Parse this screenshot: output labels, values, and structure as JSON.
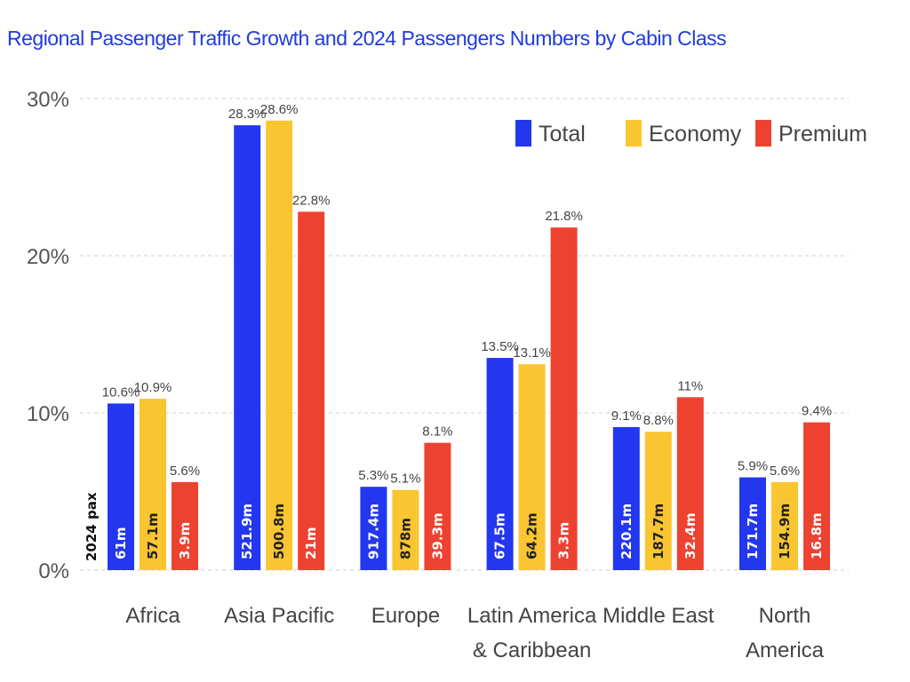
{
  "chart_data": {
    "type": "bar",
    "title": "Regional Passenger Traffic Growth and 2024 Passengers Numbers by Cabin Class",
    "categories": [
      [
        "Africa"
      ],
      [
        "Asia Pacific"
      ],
      [
        "Europe"
      ],
      [
        "Latin America",
        "& Caribbean"
      ],
      [
        "Middle East"
      ],
      [
        "North",
        "America"
      ]
    ],
    "ylim": [
      0,
      30
    ],
    "yticks": [
      0,
      10,
      20,
      30
    ],
    "ytick_labels": [
      "0%",
      "10%",
      "20%",
      "30%"
    ],
    "grid": true,
    "legend_position": "top-right",
    "bar_annotation_title": "2024 pax",
    "series": [
      {
        "name": "Total",
        "color": "#2337ee",
        "values": [
          10.6,
          28.3,
          5.3,
          13.5,
          9.1,
          5.9
        ],
        "value_labels": [
          "10.6%",
          "28.3%",
          "5.3%",
          "13.5%",
          "9.1%",
          "5.9%"
        ],
        "pax_labels": [
          "61m",
          "521.9m",
          "917.4m",
          "67.5m",
          "220.1m",
          "171.7m"
        ]
      },
      {
        "name": "Economy",
        "color": "#f9c531",
        "values": [
          10.9,
          28.6,
          5.1,
          13.1,
          8.8,
          5.6
        ],
        "value_labels": [
          "10.9%",
          "28.6%",
          "5.1%",
          "13.1%",
          "8.8%",
          "5.6%"
        ],
        "pax_labels": [
          "57.1m",
          "500.8m",
          "878m",
          "64.2m",
          "187.7m",
          "154.9m"
        ]
      },
      {
        "name": "Premium",
        "color": "#ee4231",
        "values": [
          5.6,
          22.8,
          8.1,
          21.8,
          11,
          9.4
        ],
        "value_labels": [
          "5.6%",
          "22.8%",
          "8.1%",
          "21.8%",
          "11%",
          "9.4%"
        ],
        "pax_labels": [
          "3.9m",
          "21m",
          "39.3m",
          "3.3m",
          "32.4m",
          "16.8m"
        ]
      }
    ]
  }
}
